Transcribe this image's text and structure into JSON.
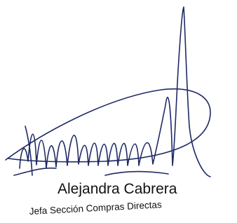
{
  "signature": {
    "name": "Alejandra Cabrera",
    "title": "Jefa Sección Compras Directas"
  }
}
